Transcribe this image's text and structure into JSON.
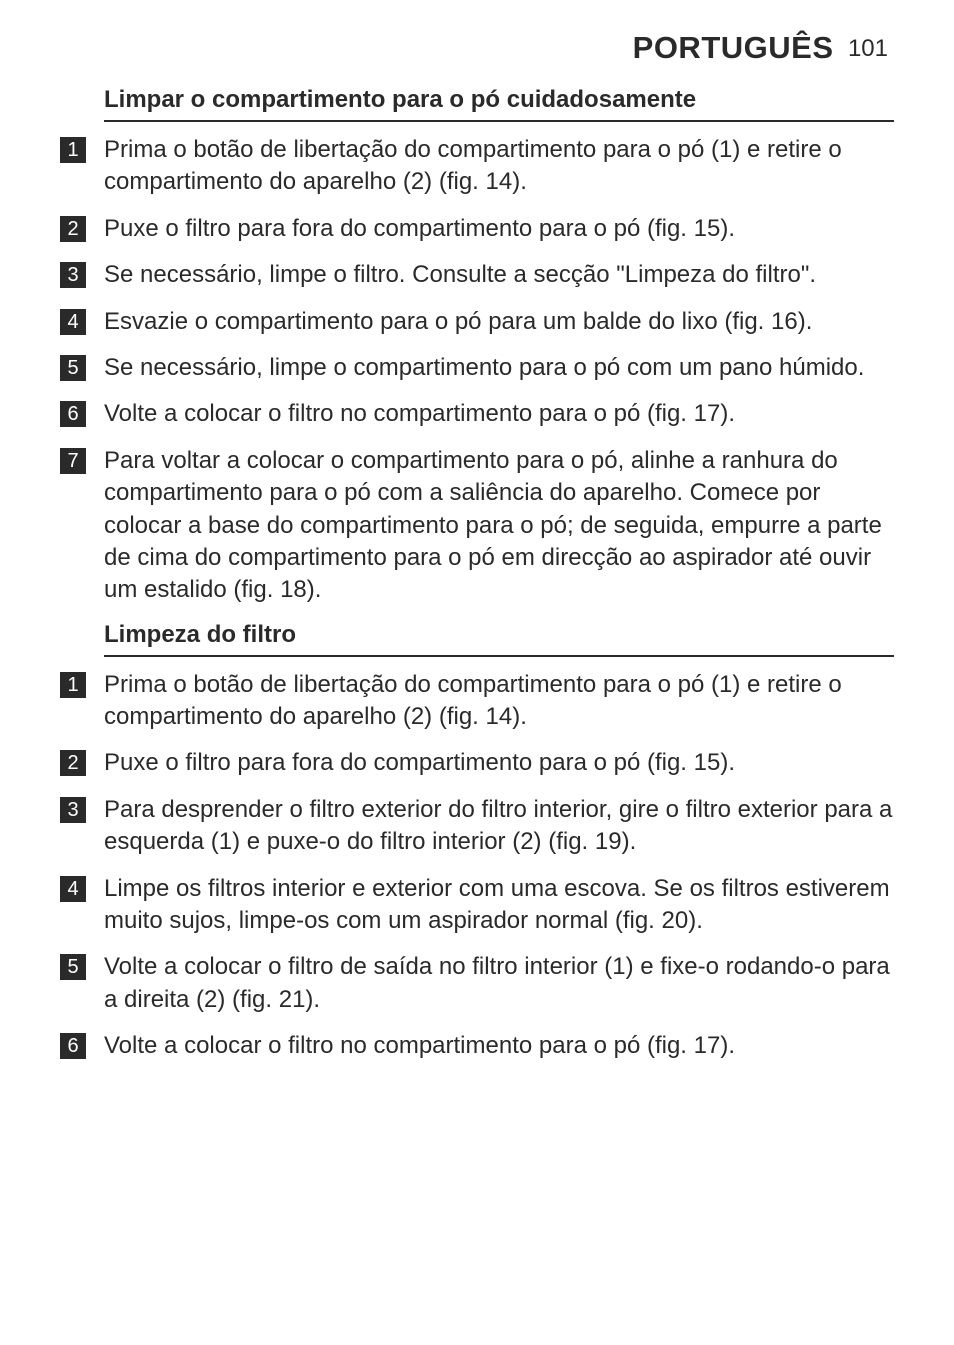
{
  "header": {
    "language": "PORTUGUÊS",
    "page_number": "101"
  },
  "sections": [
    {
      "title": "Limpar o compartimento para o pó cuidadosamente",
      "steps": [
        "Prima o botão de libertação do compartimento para o pó (1) e retire o compartimento do aparelho (2) (fig. 14).",
        "Puxe o filtro para fora do compartimento para o pó (fig. 15).",
        "Se necessário, limpe o filtro. Consulte a secção \"Limpeza do filtro\".",
        "Esvazie o compartimento para o pó para um balde do lixo (fig. 16).",
        "Se necessário, limpe o compartimento para o pó com um pano húmido.",
        "Volte a colocar o filtro no compartimento para o pó (fig. 17).",
        "Para voltar a colocar o compartimento para o pó, alinhe a ranhura do compartimento para o pó com a saliência do aparelho. Comece por colocar a base do compartimento para o pó; de seguida, empurre a parte de cima do compartimento para o pó em direcção ao aspirador até ouvir um estalido (fig. 18)."
      ]
    },
    {
      "title": "Limpeza do filtro",
      "steps": [
        "Prima o botão de libertação do compartimento para o pó (1) e retire o compartimento do aparelho (2) (fig. 14).",
        "Puxe o filtro para fora do compartimento para o pó (fig. 15).",
        "Para desprender o filtro exterior do filtro interior, gire o filtro exterior para a esquerda (1) e puxe-o do filtro interior (2) (fig. 19).",
        "Limpe os filtros interior e exterior com uma escova. Se os filtros estiverem muito sujos, limpe-os com um aspirador normal (fig. 20).",
        "Volte a colocar o filtro de saída no filtro interior (1) e fixe-o rodando-o para a direita (2) (fig. 21).",
        "Volte a colocar o filtro no compartimento para o pó (fig. 17)."
      ]
    }
  ],
  "style": {
    "colors": {
      "text": "#2a2a2a",
      "background": "#ffffff",
      "marker_bg": "#2a2a2a",
      "marker_fg": "#ffffff",
      "rule": "#2a2a2a"
    },
    "fonts": {
      "header_lang_size": 31,
      "header_num_size": 24,
      "title_size": 24,
      "body_size": 24,
      "marker_size": 20
    }
  }
}
